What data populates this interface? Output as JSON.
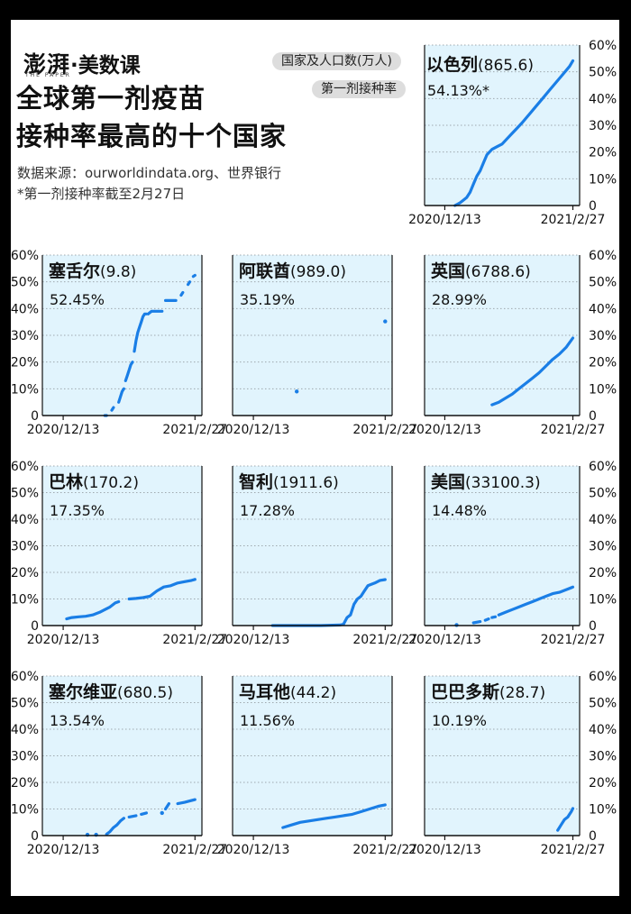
{
  "brand": {
    "logo": "澎湃",
    "separator": "·",
    "name": "美数课",
    "tagline": "THE PAPER"
  },
  "title": {
    "line1": "全球第一剂疫苗",
    "line2": "接种率最高的十个国家"
  },
  "source": {
    "line1": "数据来源：ourworldindata.org、世界银行",
    "line2": "*第一剂接种率截至2月27日"
  },
  "legend": {
    "country_label": "国家及人口数(万人)",
    "rate_label": "第一剂接种率"
  },
  "colors": {
    "line": "#1a7ee6",
    "panel_bg": "#e1f4fd",
    "grid": "#9fa9af",
    "axis": "#111111"
  },
  "chart_data": [
    {
      "type": "line",
      "name": "以色列",
      "population": "(865.6)",
      "rate_label": "54.13%*",
      "x_ticks": [
        "2020/12/13",
        "2021/2/27"
      ],
      "y_ticks": [
        "0",
        "10%",
        "20%",
        "30%",
        "40%",
        "50%",
        "60%"
      ],
      "ylim": [
        0,
        60
      ],
      "xlim": [
        "2020/12/01",
        "2021/03/03"
      ],
      "series": [
        {
          "x": [
            "2020/12/19",
            "2020/12/20",
            "2020/12/22",
            "2020/12/24",
            "2020/12/26",
            "2020/12/28",
            "2020/12/30",
            "2021/01/01",
            "2021/01/03",
            "2021/01/05",
            "2021/01/07",
            "2021/01/10",
            "2021/01/13",
            "2021/01/16",
            "2021/01/19",
            "2021/01/22",
            "2021/01/25",
            "2021/01/28",
            "2021/02/01",
            "2021/02/05",
            "2021/02/09",
            "2021/02/13",
            "2021/02/17",
            "2021/02/21",
            "2021/02/25",
            "2021/02/27"
          ],
          "y": [
            0,
            0.3,
            1,
            2,
            3,
            5,
            8,
            11,
            13,
            16,
            19,
            21,
            22,
            23,
            25,
            27,
            29,
            31,
            34,
            37,
            40,
            43,
            46,
            49,
            52,
            54.13
          ]
        }
      ]
    },
    {
      "type": "line",
      "name": "塞舌尔",
      "population": "(9.8)",
      "rate_label": "52.45%",
      "x_ticks": [
        "2020/12/13",
        "2021/2/27"
      ],
      "y_ticks": [
        "0",
        "10%",
        "20%",
        "30%",
        "40%",
        "50%",
        "60%"
      ],
      "ylim": [
        0,
        60
      ],
      "xlim": [
        "2020/12/01",
        "2021/03/03"
      ],
      "series": [
        {
          "x": [
            "2021/01/06",
            "2021/01/07"
          ],
          "y": [
            0,
            0
          ]
        },
        {
          "x": [
            "2021/01/10",
            "2021/01/11"
          ],
          "y": [
            2,
            3
          ]
        },
        {
          "x": [
            "2021/01/14",
            "2021/01/15",
            "2021/01/16",
            "2021/01/17"
          ],
          "y": [
            5,
            7,
            9,
            10
          ]
        },
        {
          "x": [
            "2021/01/18",
            "2021/01/19",
            "2021/01/20",
            "2021/01/21",
            "2021/01/22"
          ],
          "y": [
            13,
            15,
            17,
            19,
            20
          ]
        },
        {
          "x": [
            "2021/01/23",
            "2021/01/24",
            "2021/01/25",
            "2021/01/26",
            "2021/01/27",
            "2021/01/28",
            "2021/01/29",
            "2021/01/30"
          ],
          "y": [
            24,
            28,
            31,
            33,
            35,
            37,
            38,
            38
          ]
        },
        {
          "x": [
            "2021/01/31",
            "2021/02/02",
            "2021/02/04",
            "2021/02/06",
            "2021/02/08"
          ],
          "y": [
            38,
            39,
            39,
            39,
            39
          ]
        },
        {
          "x": [
            "2021/02/10",
            "2021/02/12",
            "2021/02/14",
            "2021/02/16"
          ],
          "y": [
            43,
            43,
            43,
            43
          ]
        },
        {
          "x": [
            "2021/02/19",
            "2021/02/20"
          ],
          "y": [
            45,
            46
          ]
        },
        {
          "x": [
            "2021/02/23",
            "2021/02/24"
          ],
          "y": [
            49,
            50
          ]
        },
        {
          "x": [
            "2021/02/26",
            "2021/02/27"
          ],
          "y": [
            52,
            52.45
          ]
        }
      ]
    },
    {
      "type": "line",
      "name": "阿联酋",
      "population": "(989.0)",
      "rate_label": "35.19%",
      "x_ticks": [
        "2020/12/13",
        "2021/2/27"
      ],
      "y_ticks": [
        "0",
        "10%",
        "20%",
        "30%",
        "40%",
        "50%",
        "60%"
      ],
      "ylim": [
        0,
        60
      ],
      "xlim": [
        "2020/12/01",
        "2021/03/03"
      ],
      "series": [
        {
          "x": [
            "2021/01/07"
          ],
          "y": [
            9
          ]
        },
        {
          "x": [
            "2021/02/27"
          ],
          "y": [
            35.19
          ]
        }
      ]
    },
    {
      "type": "line",
      "name": "英国",
      "population": "(6788.6)",
      "rate_label": "28.99%",
      "x_ticks": [
        "2020/12/13",
        "2021/2/27"
      ],
      "y_ticks": [
        "0",
        "10%",
        "20%",
        "30%",
        "40%",
        "50%",
        "60%"
      ],
      "ylim": [
        0,
        60
      ],
      "xlim": [
        "2020/12/01",
        "2021/03/03"
      ],
      "series": [
        {
          "x": [
            "2021/01/10",
            "2021/01/14",
            "2021/01/18",
            "2021/01/22",
            "2021/01/26",
            "2021/01/30",
            "2021/02/03",
            "2021/02/07",
            "2021/02/11",
            "2021/02/15",
            "2021/02/19",
            "2021/02/23",
            "2021/02/27"
          ],
          "y": [
            4,
            5,
            6.5,
            8,
            10,
            12,
            14,
            16,
            18.5,
            21,
            23,
            25.5,
            28.99
          ]
        }
      ]
    },
    {
      "type": "line",
      "name": "巴林",
      "population": "(170.2)",
      "rate_label": "17.35%",
      "x_ticks": [
        "2020/12/13",
        "2021/2/27"
      ],
      "y_ticks": [
        "0",
        "10%",
        "20%",
        "30%",
        "40%",
        "50%",
        "60%"
      ],
      "ylim": [
        0,
        60
      ],
      "xlim": [
        "2020/12/01",
        "2021/03/03"
      ],
      "series": [
        {
          "x": [
            "2020/12/15",
            "2020/12/18",
            "2020/12/22",
            "2020/12/26",
            "2020/12/30",
            "2021/01/03",
            "2021/01/06",
            "2021/01/09",
            "2021/01/12",
            "2021/01/14"
          ],
          "y": [
            2.5,
            3,
            3.3,
            3.5,
            4,
            5,
            6,
            7,
            8.5,
            9
          ]
        },
        {
          "x": [
            "2021/01/20",
            "2021/01/24",
            "2021/01/28",
            "2021/02/01",
            "2021/02/05",
            "2021/02/09",
            "2021/02/13",
            "2021/02/17",
            "2021/02/21",
            "2021/02/25",
            "2021/02/27"
          ],
          "y": [
            10,
            10.2,
            10.5,
            11,
            13,
            14.5,
            15,
            16,
            16.5,
            17,
            17.35
          ]
        }
      ]
    },
    {
      "type": "line",
      "name": "智利",
      "population": "(1911.6)",
      "rate_label": "17.28%",
      "x_ticks": [
        "2020/12/13",
        "2021/2/27"
      ],
      "y_ticks": [
        "0",
        "10%",
        "20%",
        "30%",
        "40%",
        "50%",
        "60%"
      ],
      "ylim": [
        0,
        60
      ],
      "xlim": [
        "2020/12/01",
        "2021/03/03"
      ],
      "series": [
        {
          "x": [
            "2020/12/24",
            "2021/01/07",
            "2021/01/21",
            "2021/02/01",
            "2021/02/03",
            "2021/02/05",
            "2021/02/07",
            "2021/02/09",
            "2021/02/11",
            "2021/02/13",
            "2021/02/15",
            "2021/02/17",
            "2021/02/19",
            "2021/02/21",
            "2021/02/24",
            "2021/02/27"
          ],
          "y": [
            0,
            0,
            0,
            0.2,
            0.5,
            3,
            4,
            8,
            10,
            11,
            13,
            15,
            15.5,
            16,
            17,
            17.28
          ]
        }
      ]
    },
    {
      "type": "line",
      "name": "美国",
      "population": "(33100.3)",
      "rate_label": "14.48%",
      "x_ticks": [
        "2020/12/13",
        "2021/2/27"
      ],
      "y_ticks": [
        "0",
        "10%",
        "20%",
        "30%",
        "40%",
        "50%",
        "60%"
      ],
      "ylim": [
        0,
        60
      ],
      "xlim": [
        "2020/12/01",
        "2021/03/03"
      ],
      "series": [
        {
          "x": [
            "2020/12/20"
          ],
          "y": [
            0.2
          ]
        },
        {
          "x": [
            "2020/12/30",
            "2021/01/03"
          ],
          "y": [
            1,
            1.5
          ]
        },
        {
          "x": [
            "2021/01/06",
            "2021/01/08"
          ],
          "y": [
            2,
            2.5
          ]
        },
        {
          "x": [
            "2021/01/10",
            "2021/01/12"
          ],
          "y": [
            3,
            3.3
          ]
        },
        {
          "x": [
            "2021/01/14",
            "2021/01/18",
            "2021/01/22",
            "2021/01/26",
            "2021/01/30",
            "2021/02/03",
            "2021/02/07",
            "2021/02/11",
            "2021/02/15",
            "2021/02/19",
            "2021/02/23",
            "2021/02/27"
          ],
          "y": [
            4,
            5,
            6,
            7,
            8,
            9,
            10,
            11,
            12,
            12.5,
            13.5,
            14.48
          ]
        }
      ]
    },
    {
      "type": "line",
      "name": "塞尔维亚",
      "population": "(680.5)",
      "rate_label": "13.54%",
      "x_ticks": [
        "2020/12/13",
        "2021/2/27"
      ],
      "y_ticks": [
        "0",
        "10%",
        "20%",
        "30%",
        "40%",
        "50%",
        "60%"
      ],
      "ylim": [
        0,
        60
      ],
      "xlim": [
        "2020/12/01",
        "2021/03/03"
      ],
      "series": [
        {
          "x": [
            "2020/12/27"
          ],
          "y": [
            0.3
          ]
        },
        {
          "x": [
            "2021/01/01"
          ],
          "y": [
            0.3
          ]
        },
        {
          "x": [
            "2021/01/07",
            "2021/01/09",
            "2021/01/11",
            "2021/01/13",
            "2021/01/15",
            "2021/01/17"
          ],
          "y": [
            0.5,
            1.5,
            3,
            4,
            5.5,
            6.5
          ]
        },
        {
          "x": [
            "2021/01/20",
            "2021/01/24"
          ],
          "y": [
            7,
            7.5
          ]
        },
        {
          "x": [
            "2021/01/27",
            "2021/01/30"
          ],
          "y": [
            8,
            8.5
          ]
        },
        {
          "x": [
            "2021/02/08"
          ],
          "y": [
            8.5
          ]
        },
        {
          "x": [
            "2021/02/10",
            "2021/02/12"
          ],
          "y": [
            10,
            12
          ]
        },
        {
          "x": [
            "2021/02/17",
            "2021/02/21",
            "2021/02/24",
            "2021/02/27"
          ],
          "y": [
            12,
            12.5,
            13,
            13.54
          ]
        }
      ]
    },
    {
      "type": "line",
      "name": "马耳他",
      "population": "(44.2)",
      "rate_label": "11.56%",
      "x_ticks": [
        "2020/12/13",
        "2021/2/27"
      ],
      "y_ticks": [
        "0",
        "10%",
        "20%",
        "30%",
        "40%",
        "50%",
        "60%"
      ],
      "ylim": [
        0,
        60
      ],
      "xlim": [
        "2020/12/01",
        "2021/03/03"
      ],
      "series": [
        {
          "x": [
            "2020/12/30",
            "2021/01/04",
            "2021/01/09",
            "2021/01/14",
            "2021/01/19",
            "2021/01/24",
            "2021/01/29",
            "2021/02/03",
            "2021/02/08",
            "2021/02/13",
            "2021/02/18",
            "2021/02/23",
            "2021/02/25",
            "2021/02/27"
          ],
          "y": [
            3,
            4,
            5,
            5.5,
            6,
            6.5,
            7,
            7.5,
            8,
            9,
            10,
            11,
            11.3,
            11.56
          ]
        }
      ]
    },
    {
      "type": "line",
      "name": "巴巴多斯",
      "population": "(28.7)",
      "rate_label": "10.19%",
      "x_ticks": [
        "2020/12/13",
        "2021/2/27"
      ],
      "y_ticks": [
        "0",
        "10%",
        "20%",
        "30%",
        "40%",
        "50%",
        "60%"
      ],
      "ylim": [
        0,
        60
      ],
      "xlim": [
        "2020/12/01",
        "2021/03/03"
      ],
      "series": [
        {
          "x": [
            "2021/02/18",
            "2021/02/20",
            "2021/02/22",
            "2021/02/24",
            "2021/02/25",
            "2021/02/26",
            "2021/02/27"
          ],
          "y": [
            2,
            4,
            6,
            7,
            8,
            9,
            10.19
          ]
        }
      ]
    }
  ]
}
